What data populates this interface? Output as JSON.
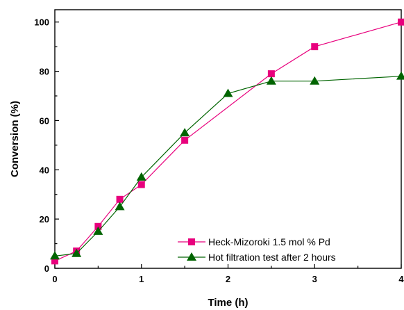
{
  "chart_data": {
    "type": "line",
    "xlabel": "Time (h)",
    "ylabel": "Conversion (%)",
    "xlim": [
      0,
      4
    ],
    "ylim": [
      0,
      105
    ],
    "x_ticks": [
      0,
      1,
      2,
      3,
      4
    ],
    "y_ticks": [
      0,
      20,
      40,
      60,
      80,
      100
    ],
    "grid": false,
    "legend_position": "bottom-right",
    "series": [
      {
        "name": "Heck-Mizoroki 1.5 mol % Pd",
        "color": "#e8007d",
        "marker": "square",
        "x": [
          0,
          0.25,
          0.5,
          0.75,
          1,
          1.5,
          2.5,
          3,
          4
        ],
        "y": [
          3,
          7,
          17,
          28,
          34,
          52,
          79,
          90,
          100
        ]
      },
      {
        "name": "Hot filtration test after 2 hours",
        "color": "#006400",
        "marker": "triangle",
        "x": [
          0,
          0.25,
          0.5,
          0.75,
          1,
          1.5,
          2,
          2.5,
          3,
          4
        ],
        "y": [
          5,
          6,
          15,
          25,
          37,
          55,
          71,
          76,
          76,
          78
        ]
      }
    ]
  }
}
